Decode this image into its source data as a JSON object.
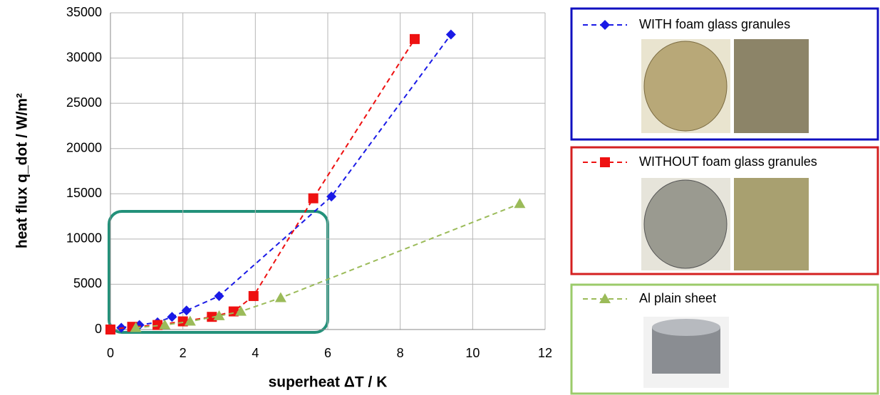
{
  "chart_data": {
    "type": "line",
    "x_label": "superheat ΔT  / K",
    "y_label": "heat flux  q_dot  / W/m²",
    "xlim": [
      0,
      12
    ],
    "xticks": [
      0,
      2,
      4,
      6,
      8,
      10,
      12
    ],
    "ylim": [
      0,
      35000
    ],
    "yticks": [
      0,
      5000,
      10000,
      15000,
      20000,
      25000,
      30000,
      35000
    ],
    "grid": true,
    "series": [
      {
        "name": "WITH foam glass granules",
        "color": "#1a1ae6",
        "marker": "diamond",
        "x": [
          0.3,
          0.8,
          1.3,
          1.7,
          2.1,
          3.0,
          6.1,
          9.4
        ],
        "values": [
          200,
          500,
          800,
          1400,
          2100,
          3700,
          14700,
          32600
        ]
      },
      {
        "name": "WITHOUT foam glass granules",
        "color": "#ee1111",
        "marker": "square",
        "x": [
          0,
          0.6,
          1.3,
          2.0,
          2.8,
          3.4,
          3.95,
          5.6,
          8.4
        ],
        "values": [
          0,
          300,
          500,
          900,
          1400,
          2000,
          3700,
          14500,
          32100
        ]
      },
      {
        "name": "Al plain sheet",
        "color": "#9bbb59",
        "marker": "triangle",
        "x": [
          0.7,
          1.5,
          2.2,
          3.0,
          3.6,
          4.7,
          11.3
        ],
        "values": [
          200,
          500,
          900,
          1500,
          2000,
          3500,
          13900
        ]
      }
    ]
  }
}
